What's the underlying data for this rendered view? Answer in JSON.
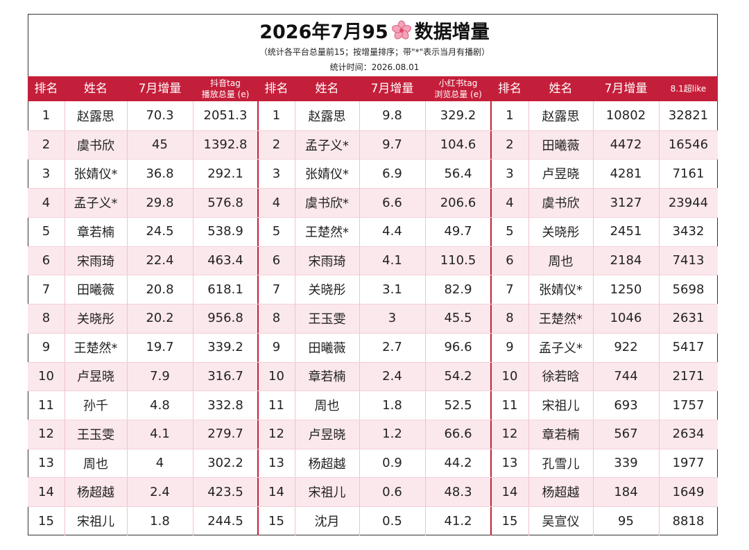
{
  "header": {
    "title_left": "2026年7月95",
    "title_right": "数据增量",
    "subtitle": "（统计各平台总量前15；按增量排序；带\"*\"表示当月有播剧）",
    "date": "统计时间：2026.08.01"
  },
  "table": {
    "groups": [
      {
        "columns": [
          [
            "排名"
          ],
          [
            "姓名"
          ],
          [
            "7月增量"
          ],
          [
            "抖音tag",
            "播放总量 (e)"
          ]
        ],
        "rows": [
          [
            "1",
            "赵露思",
            "70.3",
            "2051.3"
          ],
          [
            "2",
            "虞书欣",
            "45",
            "1392.8"
          ],
          [
            "3",
            "张婧仪*",
            "36.8",
            "292.1"
          ],
          [
            "4",
            "孟子义*",
            "29.8",
            "576.8"
          ],
          [
            "5",
            "章若楠",
            "24.5",
            "538.9"
          ],
          [
            "6",
            "宋雨琦",
            "22.4",
            "463.4"
          ],
          [
            "7",
            "田曦薇",
            "20.8",
            "618.1"
          ],
          [
            "8",
            "关晓彤",
            "20.2",
            "956.8"
          ],
          [
            "9",
            "王楚然*",
            "19.7",
            "339.2"
          ],
          [
            "10",
            "卢昱晓",
            "7.9",
            "316.7"
          ],
          [
            "11",
            "孙千",
            "4.8",
            "332.8"
          ],
          [
            "12",
            "王玉雯",
            "4.1",
            "279.7"
          ],
          [
            "13",
            "周也",
            "4",
            "302.2"
          ],
          [
            "14",
            "杨超越",
            "2.4",
            "423.5"
          ],
          [
            "15",
            "宋祖儿",
            "1.8",
            "244.5"
          ]
        ]
      },
      {
        "columns": [
          [
            "排名"
          ],
          [
            "姓名"
          ],
          [
            "7月增量"
          ],
          [
            "小红书tag",
            "浏览总量 (e)"
          ]
        ],
        "rows": [
          [
            "1",
            "赵露思",
            "9.8",
            "329.2"
          ],
          [
            "2",
            "孟子义*",
            "9.7",
            "104.6"
          ],
          [
            "3",
            "张婧仪*",
            "6.9",
            "56.4"
          ],
          [
            "4",
            "虞书欣*",
            "6.6",
            "206.6"
          ],
          [
            "5",
            "王楚然*",
            "4.4",
            "49.7"
          ],
          [
            "6",
            "宋雨琦",
            "4.1",
            "110.5"
          ],
          [
            "7",
            "关晓彤",
            "3.1",
            "82.9"
          ],
          [
            "8",
            "王玉雯",
            "3",
            "45.5"
          ],
          [
            "9",
            "田曦薇",
            "2.7",
            "96.6"
          ],
          [
            "10",
            "章若楠",
            "2.4",
            "54.2"
          ],
          [
            "11",
            "周也",
            "1.8",
            "52.5"
          ],
          [
            "12",
            "卢昱晓",
            "1.2",
            "66.6"
          ],
          [
            "13",
            "杨超越",
            "0.9",
            "44.2"
          ],
          [
            "14",
            "宋祖儿",
            "0.6",
            "48.3"
          ],
          [
            "15",
            "沈月",
            "0.5",
            "41.2"
          ]
        ]
      },
      {
        "columns": [
          [
            "排名"
          ],
          [
            "姓名"
          ],
          [
            "7月增量"
          ],
          [
            "8.1超like"
          ]
        ],
        "rows": [
          [
            "1",
            "赵露思",
            "10802",
            "32821"
          ],
          [
            "2",
            "田曦薇",
            "4472",
            "16546"
          ],
          [
            "3",
            "卢昱晓",
            "4281",
            "7161"
          ],
          [
            "4",
            "虞书欣",
            "3127",
            "23944"
          ],
          [
            "5",
            "关晓彤",
            "2451",
            "3432"
          ],
          [
            "6",
            "周也",
            "2184",
            "7413"
          ],
          [
            "7",
            "张婧仪*",
            "1250",
            "5698"
          ],
          [
            "8",
            "王楚然*",
            "1046",
            "2631"
          ],
          [
            "9",
            "孟子义*",
            "922",
            "5417"
          ],
          [
            "10",
            "徐若晗",
            "744",
            "2171"
          ],
          [
            "11",
            "宋祖儿",
            "693",
            "1757"
          ],
          [
            "12",
            "章若楠",
            "567",
            "2634"
          ],
          [
            "13",
            "孔雪儿",
            "339",
            "1977"
          ],
          [
            "14",
            "杨超越",
            "184",
            "1649"
          ],
          [
            "15",
            "吴宣仪",
            "95",
            "8818"
          ]
        ]
      }
    ]
  }
}
